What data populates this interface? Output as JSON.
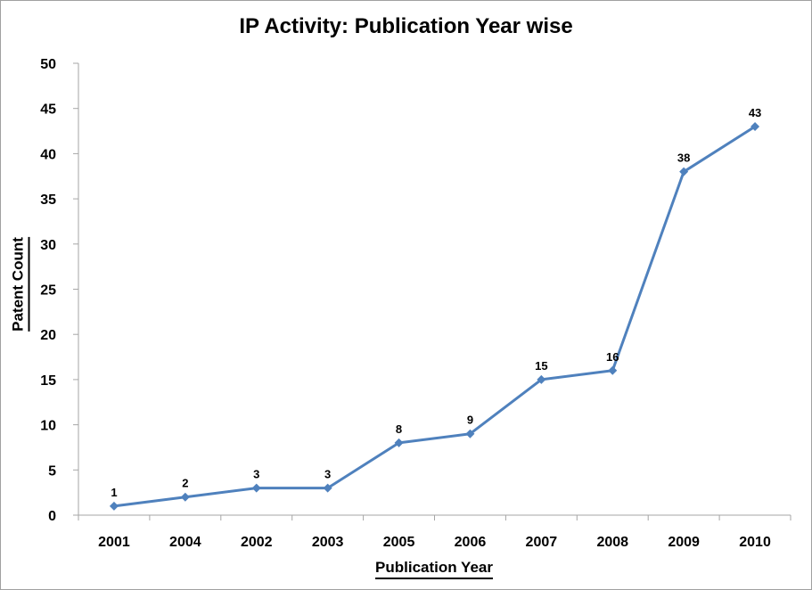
{
  "chart_data": {
    "type": "line",
    "title": "IP Activity: Publication Year wise",
    "xlabel": "Publication Year",
    "ylabel": "Patent Count",
    "categories": [
      "2001",
      "2004",
      "2002",
      "2003",
      "2005",
      "2006",
      "2007",
      "2008",
      "2009",
      "2010"
    ],
    "series": [
      {
        "name": "Patent Count",
        "values": [
          1,
          2,
          3,
          3,
          8,
          9,
          15,
          16,
          38,
          43
        ]
      }
    ],
    "data_labels_shown": true,
    "ylim": [
      0,
      50
    ],
    "yticks": [
      0,
      5,
      10,
      15,
      20,
      25,
      30,
      35,
      40,
      45,
      50
    ],
    "grid": false,
    "legend": "none",
    "marker": "diamond",
    "colors": {
      "line": "#4F81BD",
      "axis": "#A6A6A6",
      "text": "#000000",
      "background": "#FFFFFF",
      "frame": "#A0A0A0"
    }
  }
}
